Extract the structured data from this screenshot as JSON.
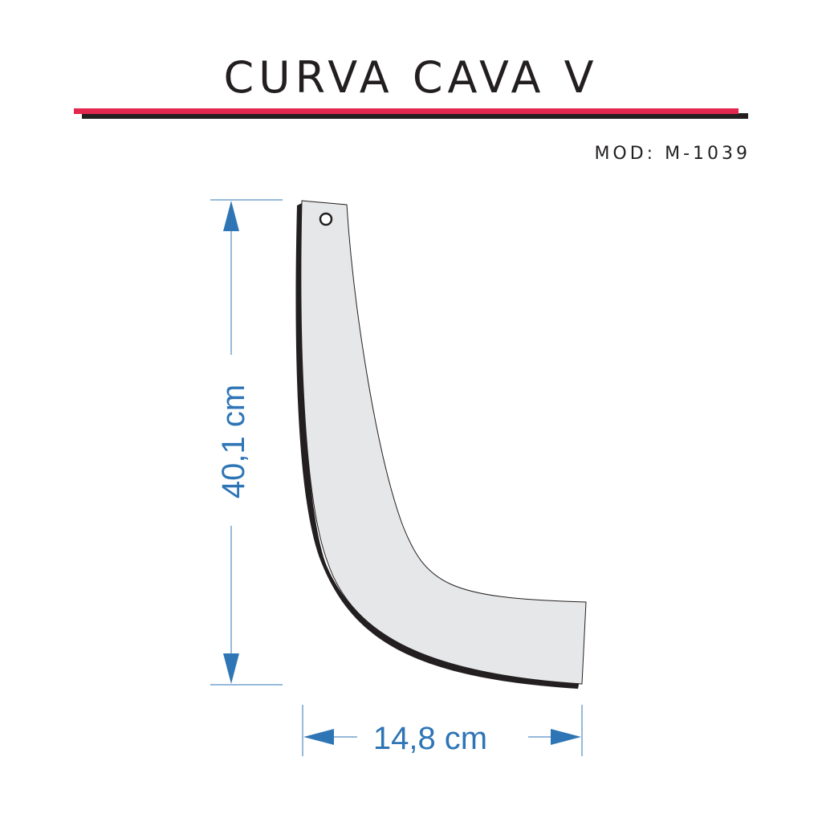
{
  "header": {
    "title": "CURVA CAVA V",
    "model": "MOD: M-1039"
  },
  "dimensions": {
    "height": "40,1 cm",
    "width": "14,8 cm"
  }
}
